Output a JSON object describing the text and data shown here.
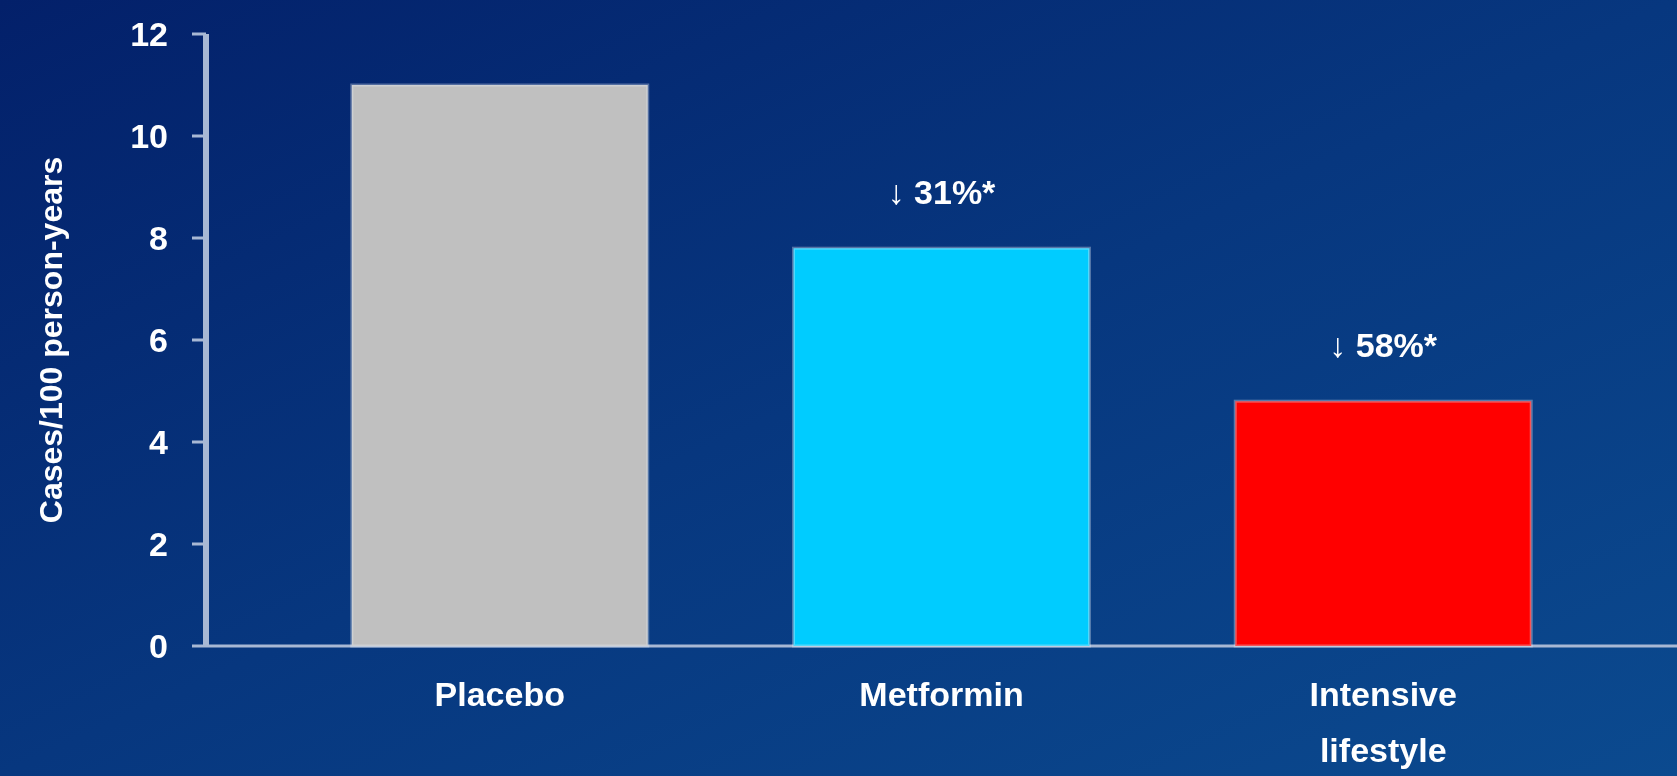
{
  "chart_data": {
    "type": "bar",
    "ylabel": "Cases/100 person-years",
    "categories": [
      "Placebo",
      "Metformin",
      "Intensive lifestyle"
    ],
    "values": [
      11.0,
      7.8,
      4.8
    ],
    "colors": [
      "#c0c0c0",
      "#00ccff",
      "#ff0000"
    ],
    "ylim": [
      0,
      12
    ],
    "yticks": [
      0,
      2,
      4,
      6,
      8,
      10,
      12
    ],
    "annotations": [
      {
        "text": "↓ 31%*",
        "x": "Metformin",
        "y": 7.8
      },
      {
        "text": "↓ 58%*",
        "x": "Intensive lifestyle",
        "y": 4.8
      }
    ]
  }
}
